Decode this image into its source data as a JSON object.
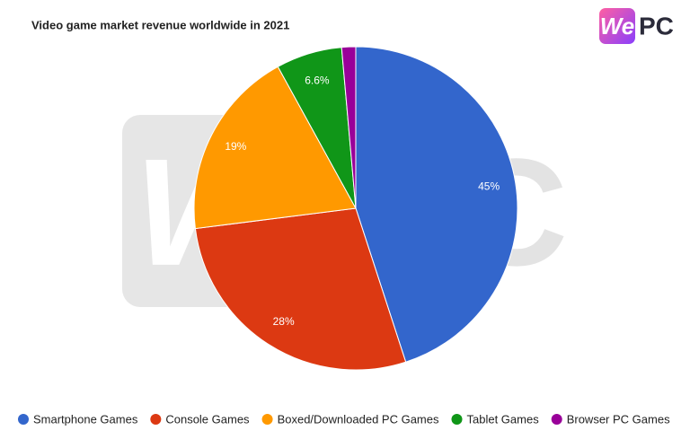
{
  "chart_data": {
    "type": "pie",
    "title": "Video game market revenue worldwide in 2021",
    "categories": [
      "Smartphone Games",
      "Console Games",
      "Boxed/Downloaded PC Games",
      "Tablet Games",
      "Browser PC Games"
    ],
    "values": [
      45,
      28,
      19,
      6.6,
      1.4
    ],
    "value_labels": [
      "45%",
      "28%",
      "19%",
      "6.6%",
      null
    ],
    "colors": [
      "#3366cc",
      "#dc3912",
      "#ff9900",
      "#109618",
      "#990099"
    ],
    "legend": "bottom"
  },
  "logo": {
    "left": "We",
    "right": "PC"
  }
}
